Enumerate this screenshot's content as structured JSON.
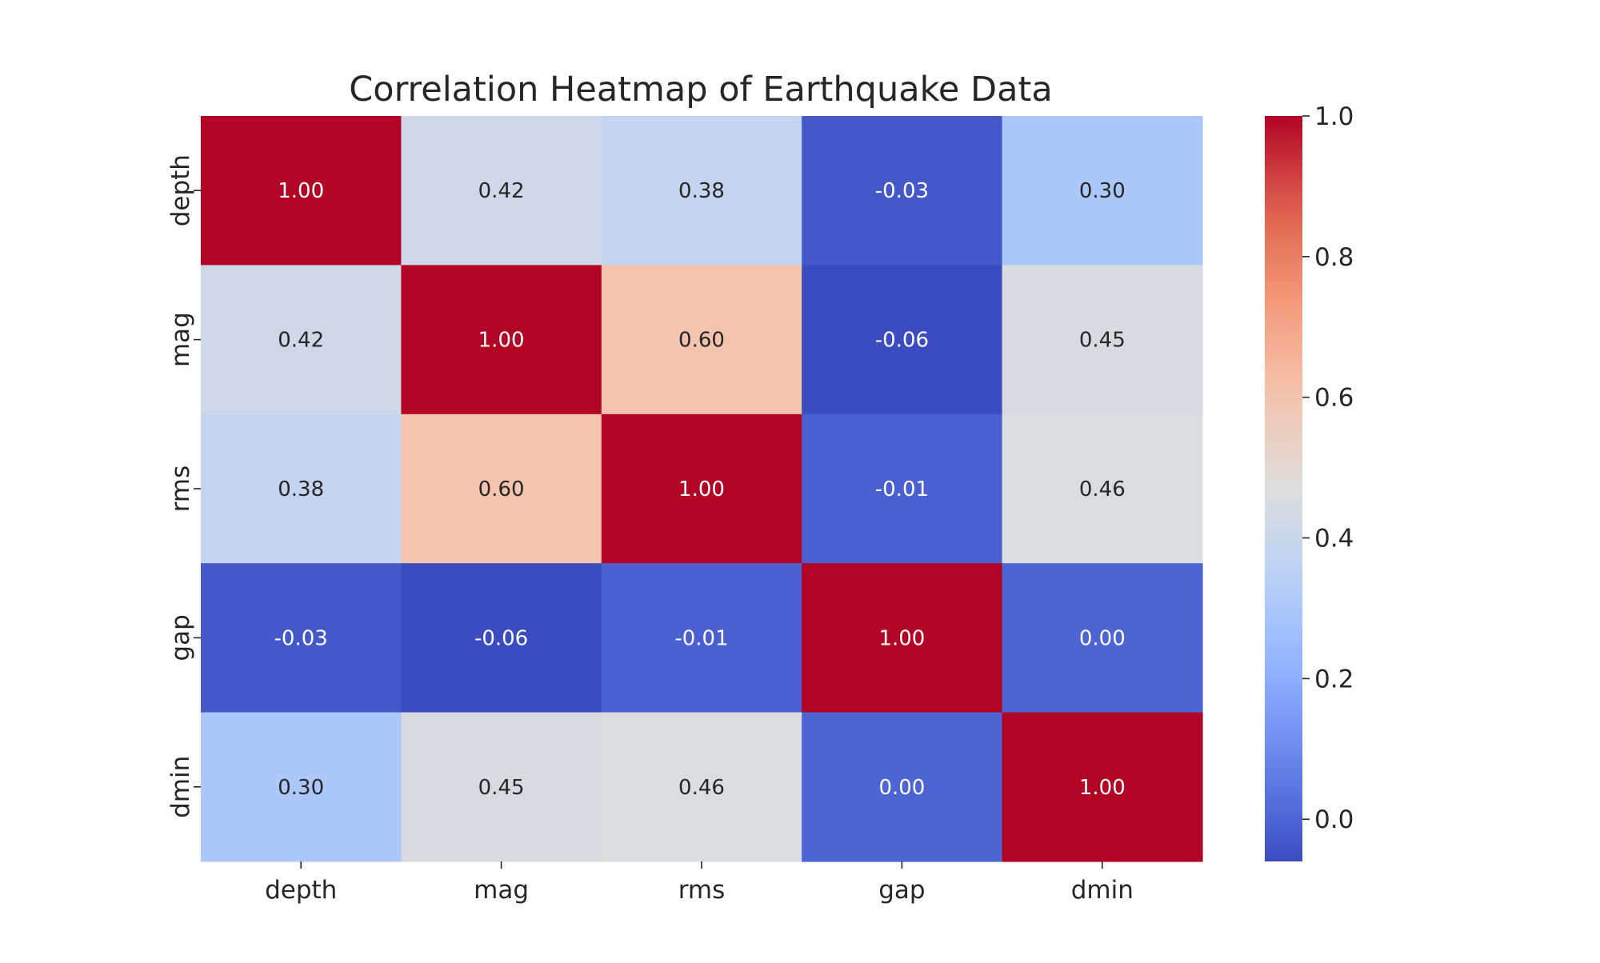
{
  "chart_data": {
    "type": "heatmap",
    "title": "Correlation Heatmap of Earthquake Data",
    "rows": [
      "depth",
      "mag",
      "rms",
      "gap",
      "dmin"
    ],
    "columns": [
      "depth",
      "mag",
      "rms",
      "gap",
      "dmin"
    ],
    "values": [
      [
        1.0,
        0.42,
        0.38,
        -0.03,
        0.3
      ],
      [
        0.42,
        1.0,
        0.6,
        -0.06,
        0.45
      ],
      [
        0.38,
        0.6,
        1.0,
        -0.01,
        0.46
      ],
      [
        -0.03,
        -0.06,
        -0.01,
        1.0,
        0.0
      ],
      [
        0.3,
        0.45,
        0.46,
        0.0,
        1.0
      ]
    ],
    "value_format": "0.00",
    "colormap": "coolwarm",
    "colorbar": {
      "range": [
        -0.06,
        1.0
      ],
      "ticks": [
        0.0,
        0.2,
        0.4,
        0.6,
        0.8,
        1.0
      ],
      "tick_labels": [
        "0.0",
        "0.2",
        "0.4",
        "0.6",
        "0.8",
        "1.0"
      ]
    }
  }
}
